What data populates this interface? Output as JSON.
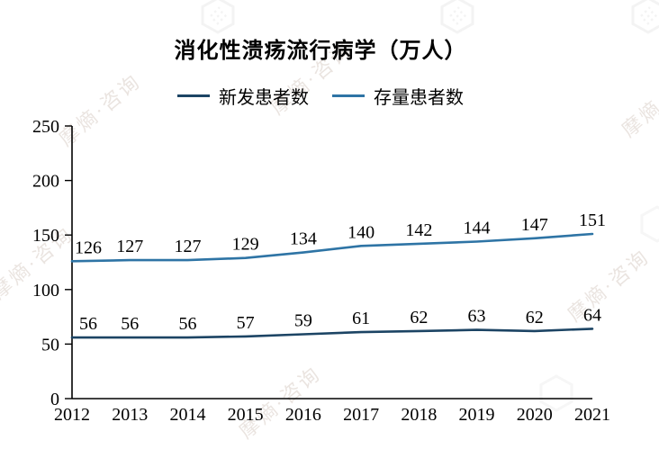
{
  "title": "消化性溃疡流行病学（万人）",
  "watermark": {
    "text": "摩熵·咨询"
  },
  "chart_data": {
    "type": "line",
    "categories": [
      "2012",
      "2013",
      "2014",
      "2015",
      "2016",
      "2017",
      "2018",
      "2019",
      "2020",
      "2021"
    ],
    "series": [
      {
        "name": "新发患者数",
        "color": "#1c4464",
        "values": [
          56,
          56,
          56,
          57,
          59,
          61,
          62,
          63,
          62,
          64
        ]
      },
      {
        "name": "存量患者数",
        "color": "#2e74a5",
        "values": [
          126,
          127,
          127,
          129,
          134,
          140,
          142,
          144,
          147,
          151
        ]
      }
    ],
    "title": "消化性溃疡流行病学（万人）",
    "xlabel": "",
    "ylabel": "",
    "ylim": [
      0,
      250
    ],
    "ytick_step": 50,
    "grid": false,
    "legend_position": "top",
    "data_labels": true
  }
}
